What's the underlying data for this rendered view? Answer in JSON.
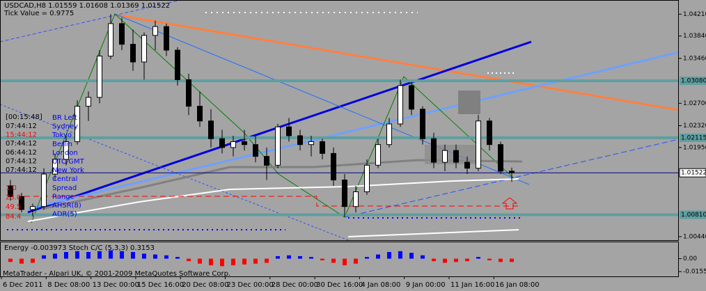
{
  "chart_data": [
    {
      "type": "candlestick",
      "title": "USDCAD,H8 1.01559 1.01608 1.01369 1.01522",
      "subtitle": "Tick Value = 0.9775",
      "ylim": [
        1.0038,
        1.0445
      ],
      "yticks": [
        {
          "value": 1.0421,
          "label": "1.04210"
        },
        {
          "value": 1.0384,
          "label": "1.03840"
        },
        {
          "value": 1.0346,
          "label": "1.03460"
        },
        {
          "value": 1.027,
          "label": "1.02700"
        },
        {
          "value": 1.0232,
          "label": "1.02320"
        },
        {
          "value": 1.0195,
          "label": "1.01950"
        },
        {
          "value": 1.0044,
          "label": "1.00440"
        }
      ],
      "levels": [
        {
          "value": 1.0308,
          "label": "1.03080"
        },
        {
          "value": 1.02115,
          "label": "1.02115"
        },
        {
          "value": 1.0081,
          "label": "1.00810"
        }
      ],
      "last_price": 1.01522,
      "up_color": "#ffffff",
      "down_color": "#000000",
      "level_color": "#5f9ea0",
      "x_labels": [
        "6 Dec 2011",
        "8 Dec 08:00",
        "13 Dec 00:00",
        "15 Dec 16:00",
        "20 Dec 08:00",
        "23 Dec 00:00",
        "28 Dec 00:00",
        "30 Dec 16:00",
        "4 Jan 08:00",
        "9 Jan 00:00",
        "11 Jan 16:00",
        "16 Jan 08:00"
      ],
      "ohlc": [
        [
          1.013,
          1.014,
          1.0105,
          1.0112
        ],
        [
          1.0112,
          1.0118,
          1.0085,
          1.009
        ],
        [
          1.009,
          1.01,
          1.0078,
          1.0095
        ],
        [
          1.0095,
          1.016,
          1.009,
          1.015
        ],
        [
          1.015,
          1.0185,
          1.014,
          1.0175
        ],
        [
          1.0175,
          1.0215,
          1.0165,
          1.0205
        ],
        [
          1.0205,
          1.0275,
          1.02,
          1.0265
        ],
        [
          1.0265,
          1.029,
          1.024,
          1.028
        ],
        [
          1.028,
          1.036,
          1.027,
          1.035
        ],
        [
          1.035,
          1.0421,
          1.0345,
          1.0405
        ],
        [
          1.0405,
          1.0415,
          1.036,
          1.037
        ],
        [
          1.037,
          1.0395,
          1.0325,
          1.034
        ],
        [
          1.034,
          1.039,
          1.031,
          1.0385
        ],
        [
          1.0385,
          1.041,
          1.036,
          1.04
        ],
        [
          1.04,
          1.0405,
          1.035,
          1.036
        ],
        [
          1.036,
          1.0365,
          1.03,
          1.031
        ],
        [
          1.031,
          1.032,
          1.025,
          1.0265
        ],
        [
          1.0265,
          1.029,
          1.023,
          1.024
        ],
        [
          1.024,
          1.026,
          1.0195,
          1.021
        ],
        [
          1.021,
          1.0225,
          1.0185,
          1.0195
        ],
        [
          1.0195,
          1.0215,
          1.018,
          1.0205
        ],
        [
          1.0205,
          1.0225,
          1.019,
          1.02
        ],
        [
          1.02,
          1.0215,
          1.017,
          1.018
        ],
        [
          1.018,
          1.0195,
          1.014,
          1.0165
        ],
        [
          1.0165,
          1.0235,
          1.016,
          1.023
        ],
        [
          1.023,
          1.0245,
          1.0205,
          1.0215
        ],
        [
          1.0215,
          1.0225,
          1.019,
          1.02
        ],
        [
          1.02,
          1.0215,
          1.018,
          1.0205
        ],
        [
          1.0205,
          1.021,
          1.0175,
          1.0185
        ],
        [
          1.0185,
          1.0195,
          1.013,
          1.014
        ],
        [
          1.014,
          1.015,
          1.0078,
          1.0095
        ],
        [
          1.0095,
          1.013,
          1.0085,
          1.012
        ],
        [
          1.012,
          1.0175,
          1.0115,
          1.0165
        ],
        [
          1.0165,
          1.021,
          1.016,
          1.02
        ],
        [
          1.02,
          1.0245,
          1.0195,
          1.0235
        ],
        [
          1.0235,
          1.031,
          1.023,
          1.03
        ],
        [
          1.03,
          1.0305,
          1.025,
          1.026
        ],
        [
          1.026,
          1.0265,
          1.02,
          1.021
        ],
        [
          1.021,
          1.022,
          1.016,
          1.017
        ],
        [
          1.017,
          1.02,
          1.0155,
          1.019
        ],
        [
          1.019,
          1.02,
          1.016,
          1.017
        ],
        [
          1.017,
          1.018,
          1.015,
          1.016
        ],
        [
          1.016,
          1.025,
          1.0155,
          1.024
        ],
        [
          1.024,
          1.0245,
          1.019,
          1.02
        ],
        [
          1.02,
          1.0205,
          1.015,
          1.0155
        ],
        [
          1.0155,
          1.0161,
          1.0137,
          1.0152
        ]
      ],
      "info_panel": {
        "clock": "[00:15:48]",
        "times": [
          "07:44:12",
          "15:44:12",
          "07:44:12",
          "06:44:12",
          "07:44:12",
          "07:44:12"
        ],
        "labels": [
          "BR Left",
          "Sydney",
          "Tokyo",
          "Berlin",
          "London",
          "UTC/GMT",
          "New York",
          "Central",
          "Spread",
          "Range",
          "AHSR(8)",
          "ADR(5)"
        ],
        "stats": [
          "1.0",
          "23.0",
          "49.5",
          "84.4"
        ]
      },
      "footer": "MetaTrader - Alpari UK, © 2001-2009 MetaQuotes Software Corp."
    },
    {
      "type": "bar",
      "title": "Energy -0.003973  Stoch C/C (5,3,3) 0.3153",
      "ylim": [
        -0.0213,
        0.0197
      ],
      "yticks": [
        {
          "value": 0,
          "label": "0.00"
        },
        -0.01556
      ],
      "pos_color": "#0000ff",
      "neg_color": "#ff0000",
      "values": [
        -0.004,
        -0.006,
        -0.005,
        0.004,
        0.006,
        0.008,
        0.009,
        0.008,
        0.009,
        0.01,
        0.009,
        0.008,
        0.006,
        0.005,
        0.004,
        0.002,
        -0.003,
        -0.006,
        -0.008,
        -0.009,
        -0.008,
        -0.007,
        -0.006,
        -0.005,
        0.003,
        0.004,
        0.003,
        0.002,
        -0.002,
        -0.005,
        -0.008,
        -0.006,
        0.002,
        0.005,
        0.008,
        0.009,
        0.007,
        0.004,
        -0.003,
        -0.005,
        -0.004,
        -0.003,
        0.002,
        -0.002,
        -0.004,
        -0.004
      ]
    }
  ]
}
